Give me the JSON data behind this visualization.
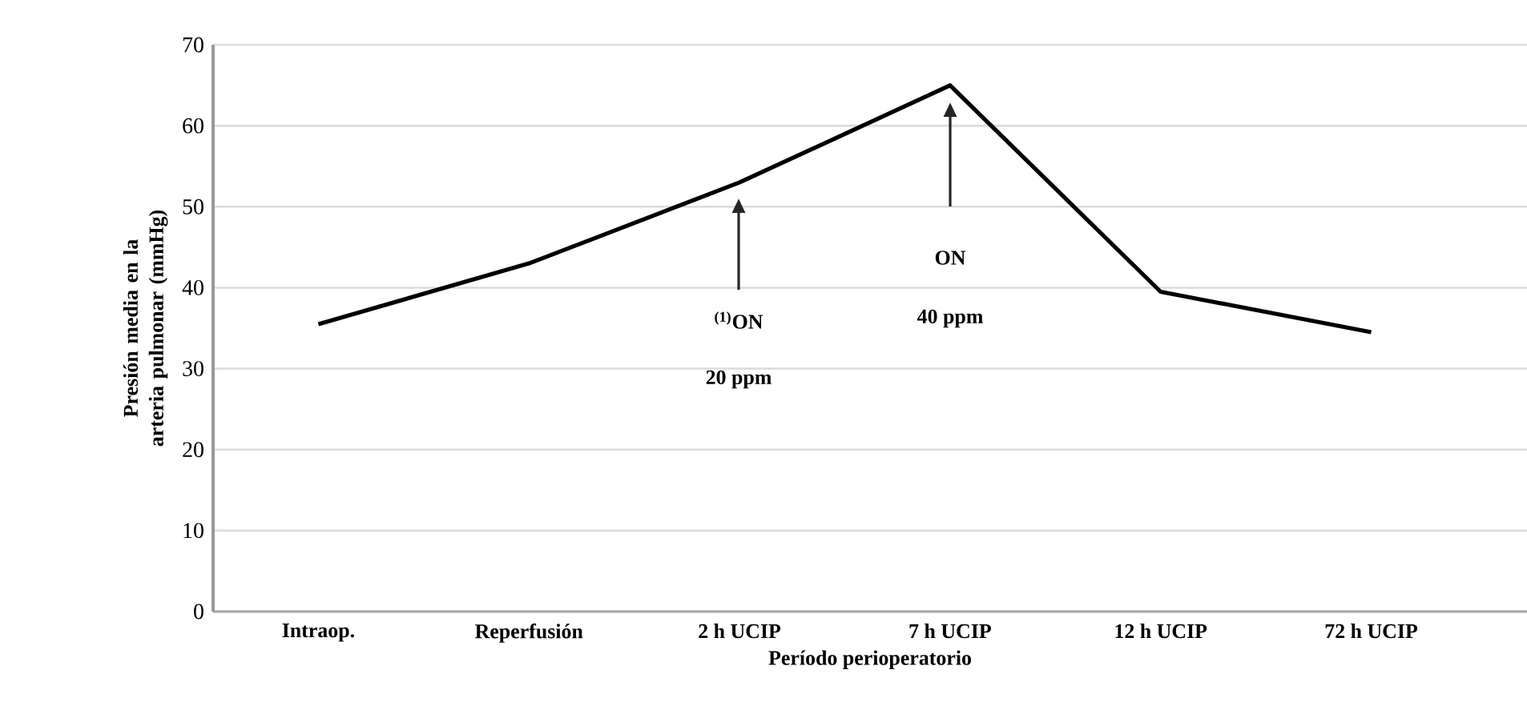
{
  "chart_data": {
    "type": "line",
    "xlabel": "Período perioperatorio",
    "ylabel": "Presión media en la arteria pulmonar (mmHg)",
    "categories": [
      "Intraop.",
      "Reperfusión",
      "2 h UCIP",
      "7 h UCIP",
      "12 h UCIP",
      "72 h UCIP"
    ],
    "series": [
      {
        "color": "#000000",
        "values": [
          35.5,
          43,
          53,
          65,
          39.5,
          34.5
        ]
      }
    ],
    "ylim": [
      0,
      70
    ],
    "yticks": [
      0,
      10,
      20,
      30,
      40,
      50,
      60,
      70
    ],
    "grid": "y",
    "annotations": [
      "$^{(1)}$ON",
      "20 ppm",
      "ON",
      "40 ppm"
    ]
  }
}
